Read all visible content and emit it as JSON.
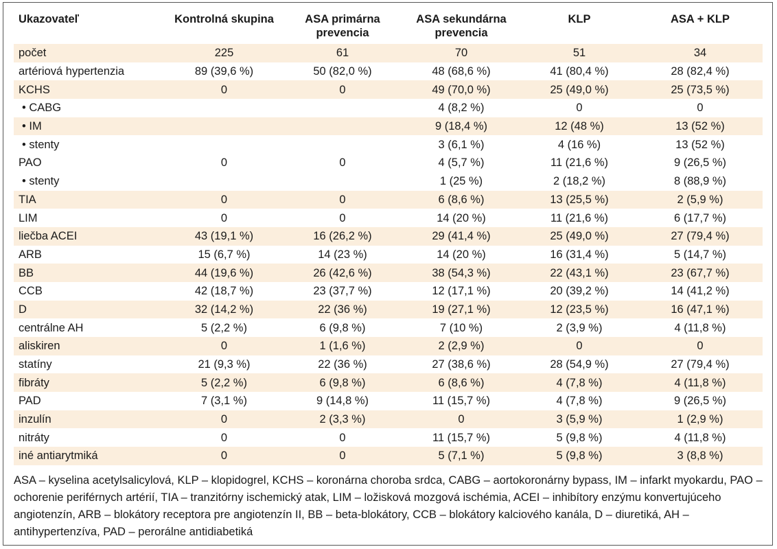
{
  "table": {
    "headers": [
      "Ukazovateľ",
      "Kontrolná skupina",
      "ASA primárna prevencia",
      "ASA sekundárna prevencia",
      "KLP",
      "ASA + KLP"
    ],
    "rows": [
      {
        "label": "počet",
        "sub": false,
        "shaded": true,
        "cells": [
          "225",
          "61",
          "70",
          "51",
          "34"
        ]
      },
      {
        "label": "artériová hypertenzia",
        "sub": false,
        "shaded": false,
        "cells": [
          "89 (39,6 %)",
          "50 (82,0 %)",
          "48 (68,6 %)",
          "41 (80,4 %)",
          "28 (82,4 %)"
        ]
      },
      {
        "label": "KCHS",
        "sub": false,
        "shaded": true,
        "cells": [
          "0",
          "0",
          "49 (70,0 %)",
          "25 (49,0 %)",
          "25 (73,5 %)"
        ]
      },
      {
        "label": "• CABG",
        "sub": true,
        "shaded": false,
        "cells": [
          "",
          "",
          "4 (8,2 %)",
          "0",
          "0"
        ]
      },
      {
        "label": "• IM",
        "sub": true,
        "shaded": true,
        "cells": [
          "",
          "",
          "9 (18,4 %)",
          "12 (48 %)",
          "13 (52 %)"
        ]
      },
      {
        "label": "• stenty",
        "sub": true,
        "shaded": false,
        "cells": [
          "",
          "",
          "3 (6,1 %)",
          "4 (16 %)",
          "13 (52 %)"
        ]
      },
      {
        "label": "PAO",
        "sub": false,
        "shaded": false,
        "cells": [
          "0",
          "0",
          "4 (5,7 %)",
          "11 (21,6 %)",
          "9 (26,5 %)"
        ]
      },
      {
        "label": "• stenty",
        "sub": true,
        "shaded": false,
        "cells": [
          "",
          "",
          "1 (25 %)",
          "2 (18,2 %)",
          "8 (88,9 %)"
        ]
      },
      {
        "label": "TIA",
        "sub": false,
        "shaded": true,
        "cells": [
          "0",
          "0",
          "6 (8,6 %)",
          "13 (25,5 %)",
          "2 (5,9 %)"
        ]
      },
      {
        "label": "LIM",
        "sub": false,
        "shaded": false,
        "cells": [
          "0",
          "0",
          "14 (20 %)",
          "11 (21,6 %)",
          "6 (17,7 %)"
        ]
      },
      {
        "label": "liečba ACEI",
        "sub": false,
        "shaded": true,
        "cells": [
          "43 (19,1 %)",
          "16 (26,2 %)",
          "29 (41,4 %)",
          "25 (49,0 %)",
          "27 (79,4 %)"
        ]
      },
      {
        "label": "ARB",
        "sub": false,
        "shaded": false,
        "cells": [
          "15 (6,7 %)",
          "14 (23 %)",
          "14 (20 %)",
          "16 (31,4 %)",
          "5 (14,7 %)"
        ]
      },
      {
        "label": "BB",
        "sub": false,
        "shaded": true,
        "cells": [
          "44 (19,6 %)",
          "26 (42,6 %)",
          "38 (54,3 %)",
          "22 (43,1 %)",
          "23 (67,7 %)"
        ]
      },
      {
        "label": "CCB",
        "sub": false,
        "shaded": false,
        "cells": [
          "42 (18,7 %)",
          "23 (37,7 %)",
          "12 (17,1 %)",
          "20 (39,2 %)",
          "14 (41,2 %)"
        ]
      },
      {
        "label": "D",
        "sub": false,
        "shaded": true,
        "cells": [
          "32 (14,2 %)",
          "22 (36 %)",
          "19 (27,1 %)",
          "12 (23,5 %)",
          "16 (47,1 %)"
        ]
      },
      {
        "label": "centrálne AH",
        "sub": false,
        "shaded": false,
        "cells": [
          "5 (2,2 %)",
          "6 (9,8 %)",
          "7 (10 %)",
          "2 (3,9 %)",
          "4 (11,8 %)"
        ]
      },
      {
        "label": "aliskiren",
        "sub": false,
        "shaded": true,
        "cells": [
          "0",
          "1 (1,6 %)",
          "2 (2,9 %)",
          "0",
          "0"
        ]
      },
      {
        "label": "statíny",
        "sub": false,
        "shaded": false,
        "cells": [
          "21 (9,3 %)",
          "22 (36 %)",
          "27 (38,6 %)",
          "28 (54,9 %)",
          "27 (79,4 %)"
        ]
      },
      {
        "label": "fibráty",
        "sub": false,
        "shaded": true,
        "cells": [
          "5 (2,2 %)",
          "6 (9,8 %)",
          "6 (8,6 %)",
          "4 (7,8 %)",
          "4 (11,8 %)"
        ]
      },
      {
        "label": "PAD",
        "sub": false,
        "shaded": false,
        "cells": [
          "7 (3,1 %)",
          "9 (14,8 %)",
          "11 (15,7 %)",
          "4 (7,8 %)",
          "9 (26,5 %)"
        ]
      },
      {
        "label": "inzulín",
        "sub": false,
        "shaded": true,
        "cells": [
          "0",
          "2 (3,3 %)",
          "0",
          "3 (5,9 %)",
          "1 (2,9 %)"
        ]
      },
      {
        "label": "nitráty",
        "sub": false,
        "shaded": false,
        "cells": [
          "0",
          "0",
          "11 (15,7 %)",
          "5 (9,8 %)",
          "4 (11,8 %)"
        ]
      },
      {
        "label": "iné antiarytmiká",
        "sub": false,
        "shaded": true,
        "cells": [
          "0",
          "0",
          "5 (7,1 %)",
          "5 (9,8 %)",
          "3 (8,8 %)"
        ]
      }
    ]
  },
  "footnote": "ASA – kyselina acetylsalicylová, KLP – klopidogrel, KCHS – koronárna choroba srdca, CABG – aortokoronárny bypass, IM – infarkt myokardu, PAO – ochorenie periférnych artérií, TIA – tranzitórny ischemický atak, LIM – ložisková mozgová ischémia, ACEI – inhibítory enzýmu konvertujúceho angiotenzín, ARB – blokátory receptora pre angiotenzín II, BB – beta-blokátory, CCB – blokátory kalciového kanála, D – diuretiká, AH – antihypertenzíva, PAD – perorálne antidiabetiká",
  "colors": {
    "shaded_row": "#fbeedd",
    "border": "#555555",
    "text": "#1a1a1a"
  }
}
